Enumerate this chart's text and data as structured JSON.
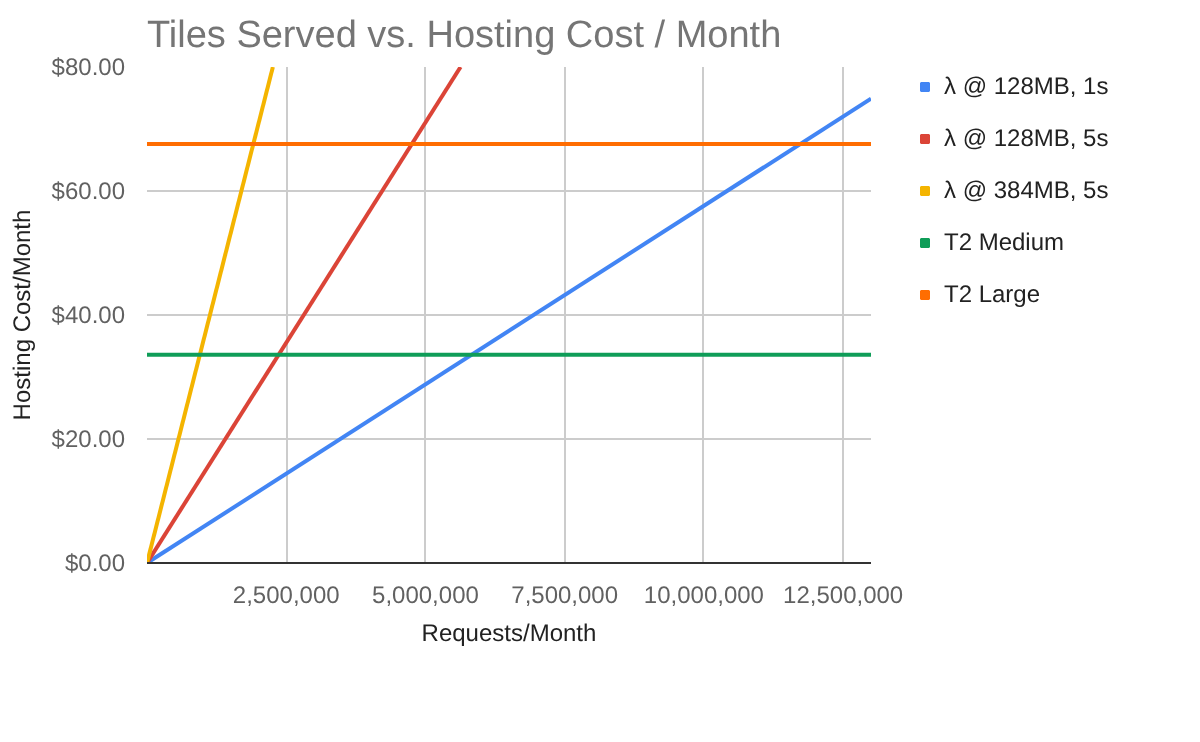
{
  "chart_data": {
    "type": "line",
    "title": "Tiles Served vs. Hosting Cost / Month",
    "xlabel": "Requests/Month",
    "ylabel": "Hosting Cost/Month",
    "xlim": [
      0,
      13000000
    ],
    "xticks": [
      {
        "value": 2500000,
        "label": "2,500,000"
      },
      {
        "value": 5000000,
        "label": "5,000,000"
      },
      {
        "value": 7500000,
        "label": "7,500,000"
      },
      {
        "value": 10000000,
        "label": "10,000,000"
      },
      {
        "value": 12500000,
        "label": "12,500,000"
      }
    ],
    "ylim": [
      0,
      80
    ],
    "yticks": [
      {
        "value": 0,
        "label": "$0.00"
      },
      {
        "value": 20,
        "label": "$20.00"
      },
      {
        "value": 40,
        "label": "$40.00"
      },
      {
        "value": 60,
        "label": "$60.00"
      },
      {
        "value": 80,
        "label": "$80.00"
      }
    ],
    "grid": true,
    "legend": "right",
    "series": [
      {
        "name": "λ @ 128MB, 1s",
        "color": "#4285f4",
        "x": [
          0,
          13000000
        ],
        "values": [
          0,
          74.9
        ]
      },
      {
        "name": "λ @ 128MB, 5s",
        "color": "#db4437",
        "x": [
          0,
          5630000
        ],
        "values": [
          0,
          80
        ]
      },
      {
        "name": "λ @ 384MB, 5s",
        "color": "#f4b400",
        "x": [
          0,
          2260000
        ],
        "values": [
          0,
          80
        ]
      },
      {
        "name": "T2 Medium",
        "color": "#0f9d58",
        "x": [
          0,
          13000000
        ],
        "values": [
          33.6,
          33.6
        ]
      },
      {
        "name": "T2 Large",
        "color": "#ff6d01",
        "x": [
          0,
          13000000
        ],
        "values": [
          67.6,
          67.6
        ]
      }
    ]
  }
}
